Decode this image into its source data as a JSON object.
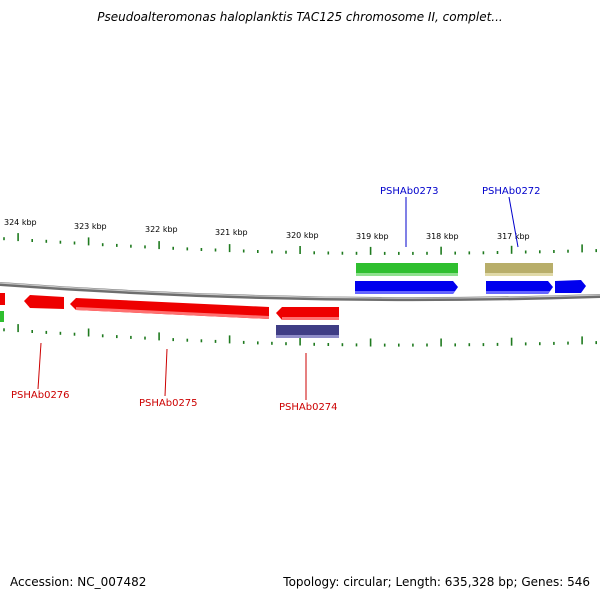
{
  "title": "Pseudoalteromonas haloplanktis TAC125 chromosome II, complet...",
  "footer": {
    "accession": "Accession: NC_007482",
    "summary": "Topology: circular; Length: 635,328 bp; Genes: 546"
  },
  "colors": {
    "backbone": "#8a8a8a",
    "ticks": "#1f7a1f",
    "forward_label": "#0000cc",
    "reverse_label": "#cc0000",
    "gene_blue": "#0000ee",
    "gene_green": "#2fbf2f",
    "gene_olive": "#b8ae6a",
    "gene_red": "#ee0000",
    "gene_purple": "#3f3d85"
  },
  "scale_labels": [
    "324 kbp",
    "323 kbp",
    "322 kbp",
    "321 kbp",
    "320 kbp",
    "319 kbp",
    "318 kbp",
    "317 kbp"
  ],
  "gene_labels": {
    "PSHAb0273": "PSHAb0273",
    "PSHAb0272": "PSHAb0272",
    "PSHAb0276": "PSHAb0276",
    "PSHAb0275": "PSHAb0275",
    "PSHAb0274": "PSHAb0274"
  }
}
